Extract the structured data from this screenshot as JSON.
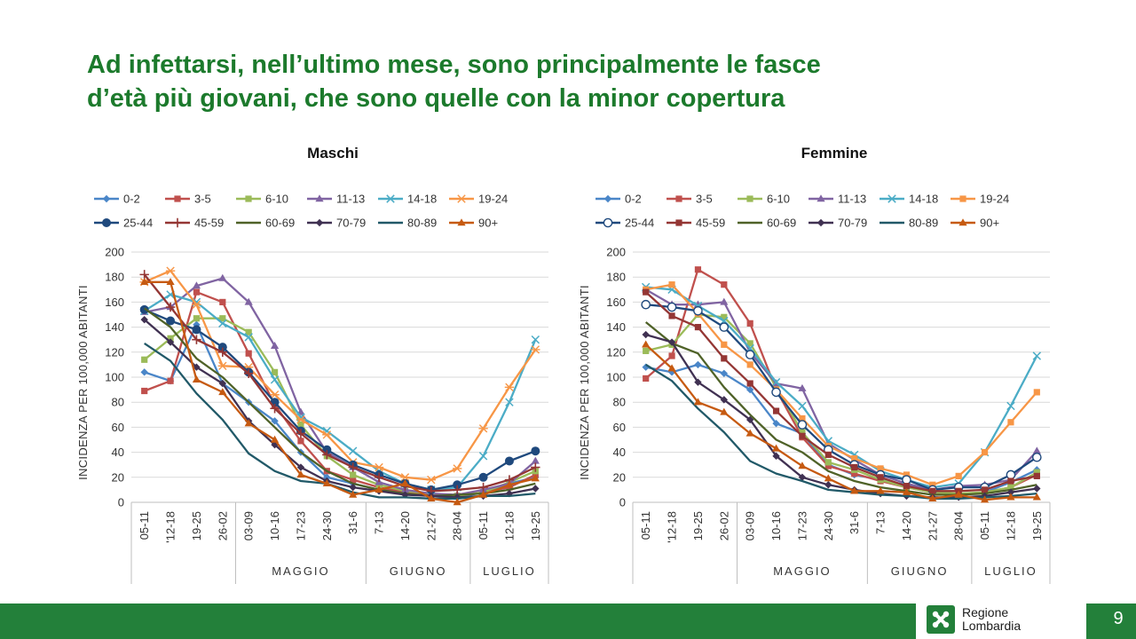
{
  "slide": {
    "title_line1": "Ad infettarsi, nell’ultimo mese, sono principalmente le fasce",
    "title_line2": "d’età più giovani, che sono quelle con la minor copertura",
    "page_number": "9",
    "brand_line1": "Regione",
    "brand_line2": "Lombardia",
    "accent_color": "#1c7a2c",
    "footer_color": "#23803a"
  },
  "chart_data": [
    {
      "type": "line",
      "title": "Maschi",
      "ylabel": "INCIDENZA PER 100,000 ABITANTI",
      "xlabel": "",
      "ylim": [
        0,
        200
      ],
      "yticks": [
        0,
        20,
        40,
        60,
        80,
        100,
        120,
        140,
        160,
        180,
        200
      ],
      "grid": true,
      "legend": "top",
      "categories": [
        "05-11",
        "'12-18",
        "19-25",
        "26-02",
        "03-09",
        "10-16",
        "17-23",
        "24-30",
        "31-6",
        "7-13",
        "14-20",
        "21-27",
        "28-04",
        "05-11",
        "12-18",
        "19-25"
      ],
      "month_groups": [
        {
          "label": "MAGGIO",
          "from": 4,
          "to": 8
        },
        {
          "label": "GIUGNO",
          "from": 9,
          "to": 12
        },
        {
          "label": "LUGLIO",
          "from": 13,
          "to": 15
        }
      ],
      "series": [
        {
          "name": "0-2",
          "color": "#4a86c8",
          "marker": "diamond",
          "values": [
            104,
            97,
            142,
            95,
            80,
            65,
            40,
            20,
            15,
            10,
            8,
            6,
            4,
            8,
            15,
            20
          ]
        },
        {
          "name": "3-5",
          "color": "#c0504d",
          "marker": "square",
          "values": [
            89,
            97,
            168,
            160,
            119,
            78,
            49,
            25,
            18,
            12,
            8,
            6,
            5,
            8,
            12,
            22
          ]
        },
        {
          "name": "6-10",
          "color": "#9bbb59",
          "marker": "square",
          "values": [
            114,
            131,
            147,
            147,
            136,
            104,
            62,
            37,
            22,
            14,
            9,
            7,
            5,
            8,
            16,
            25
          ]
        },
        {
          "name": "11-13",
          "color": "#8064a2",
          "marker": "triangle",
          "values": [
            152,
            156,
            173,
            179,
            160,
            125,
            72,
            40,
            28,
            16,
            10,
            7,
            6,
            10,
            15,
            33
          ]
        },
        {
          "name": "14-18",
          "color": "#4bacc6",
          "marker": "x",
          "values": [
            153,
            166,
            160,
            143,
            132,
            98,
            68,
            57,
            41,
            25,
            15,
            10,
            12,
            37,
            80,
            130
          ]
        },
        {
          "name": "19-24",
          "color": "#f79646",
          "marker": "star",
          "values": [
            176,
            185,
            158,
            109,
            108,
            86,
            66,
            54,
            32,
            28,
            20,
            18,
            27,
            59,
            92,
            122
          ]
        },
        {
          "name": "25-44",
          "color": "#1f497d",
          "marker": "circle",
          "values": [
            154,
            145,
            138,
            124,
            104,
            80,
            57,
            42,
            30,
            22,
            15,
            10,
            14,
            20,
            33,
            41
          ]
        },
        {
          "name": "45-59",
          "color": "#943634",
          "marker": "plus",
          "values": [
            182,
            156,
            130,
            120,
            103,
            75,
            55,
            38,
            28,
            20,
            13,
            9,
            10,
            12,
            18,
            28
          ]
        },
        {
          "name": "60-69",
          "color": "#4f6228",
          "marker": "none",
          "values": [
            155,
            140,
            115,
            100,
            80,
            60,
            40,
            25,
            15,
            10,
            7,
            5,
            6,
            7,
            10,
            15
          ]
        },
        {
          "name": "70-79",
          "color": "#403152",
          "marker": "diamond",
          "values": [
            146,
            128,
            108,
            95,
            65,
            46,
            28,
            17,
            12,
            9,
            6,
            5,
            4,
            5,
            7,
            11
          ]
        },
        {
          "name": "80-89",
          "color": "#215968",
          "marker": "none",
          "values": [
            127,
            113,
            87,
            66,
            39,
            25,
            17,
            15,
            8,
            4,
            4,
            3,
            3,
            5,
            5,
            7
          ]
        },
        {
          "name": "90+",
          "color": "#c65a11",
          "marker": "triangle",
          "values": [
            176,
            176,
            98,
            88,
            63,
            50,
            22,
            15,
            6,
            10,
            15,
            3,
            0,
            6,
            14,
            19
          ]
        }
      ]
    },
    {
      "type": "line",
      "title": "Femmine",
      "ylabel": "INCIDENZA PER 100,000 ABITANTI",
      "xlabel": "",
      "ylim": [
        0,
        200
      ],
      "yticks": [
        0,
        20,
        40,
        60,
        80,
        100,
        120,
        140,
        160,
        180,
        200
      ],
      "grid": true,
      "legend": "top",
      "categories": [
        "05-11",
        "'12-18",
        "19-25",
        "26-02",
        "03-09",
        "10-16",
        "17-23",
        "24-30",
        "31-6",
        "7-13",
        "14-20",
        "21-27",
        "28-04",
        "05-11",
        "12-18",
        "19-25"
      ],
      "month_groups": [
        {
          "label": "MAGGIO",
          "from": 4,
          "to": 8
        },
        {
          "label": "GIUGNO",
          "from": 9,
          "to": 12
        },
        {
          "label": "LUGLIO",
          "from": 13,
          "to": 15
        }
      ],
      "series": [
        {
          "name": "0-2",
          "color": "#4a86c8",
          "marker": "diamond",
          "values": [
            108,
            104,
            110,
            103,
            90,
            63,
            55,
            30,
            22,
            18,
            14,
            8,
            6,
            8,
            16,
            26
          ]
        },
        {
          "name": "3-5",
          "color": "#c0504d",
          "marker": "square",
          "values": [
            99,
            117,
            186,
            174,
            143,
            90,
            52,
            29,
            23,
            17,
            12,
            8,
            6,
            8,
            12,
            22
          ]
        },
        {
          "name": "6-10",
          "color": "#9bbb59",
          "marker": "square",
          "values": [
            121,
            126,
            150,
            148,
            127,
            92,
            56,
            32,
            26,
            18,
            12,
            8,
            7,
            8,
            12,
            24
          ]
        },
        {
          "name": "11-13",
          "color": "#8064a2",
          "marker": "triangle",
          "values": [
            170,
            158,
            158,
            160,
            120,
            95,
            91,
            47,
            34,
            22,
            15,
            10,
            13,
            14,
            18,
            41
          ]
        },
        {
          "name": "14-18",
          "color": "#4bacc6",
          "marker": "x",
          "values": [
            172,
            170,
            157,
            145,
            123,
            96,
            77,
            49,
            38,
            25,
            18,
            12,
            15,
            40,
            77,
            117
          ]
        },
        {
          "name": "19-24",
          "color": "#f79646",
          "marker": "square",
          "values": [
            170,
            174,
            151,
            126,
            110,
            90,
            67,
            45,
            35,
            27,
            22,
            14,
            21,
            40,
            64,
            88
          ]
        },
        {
          "name": "25-44",
          "color": "#1f497d",
          "marker": "circle-open",
          "values": [
            158,
            156,
            153,
            140,
            118,
            88,
            62,
            42,
            30,
            22,
            18,
            10,
            12,
            12,
            22,
            36
          ]
        },
        {
          "name": "45-59",
          "color": "#943634",
          "marker": "square",
          "values": [
            168,
            149,
            140,
            115,
            95,
            73,
            53,
            38,
            28,
            20,
            13,
            9,
            9,
            10,
            17,
            21
          ]
        },
        {
          "name": "60-69",
          "color": "#4f6228",
          "marker": "none",
          "values": [
            144,
            127,
            119,
            92,
            70,
            50,
            40,
            25,
            17,
            12,
            9,
            6,
            6,
            7,
            10,
            14
          ]
        },
        {
          "name": "70-79",
          "color": "#403152",
          "marker": "diamond",
          "values": [
            134,
            128,
            96,
            82,
            66,
            37,
            20,
            14,
            10,
            7,
            5,
            4,
            4,
            5,
            8,
            11
          ]
        },
        {
          "name": "80-89",
          "color": "#215968",
          "marker": "none",
          "values": [
            110,
            97,
            75,
            56,
            33,
            23,
            17,
            10,
            8,
            6,
            5,
            3,
            3,
            4,
            5,
            7
          ]
        },
        {
          "name": "90+",
          "color": "#c65a11",
          "marker": "triangle",
          "values": [
            126,
            107,
            80,
            72,
            55,
            43,
            29,
            19,
            9,
            9,
            8,
            3,
            6,
            2,
            4,
            4
          ]
        }
      ]
    }
  ]
}
